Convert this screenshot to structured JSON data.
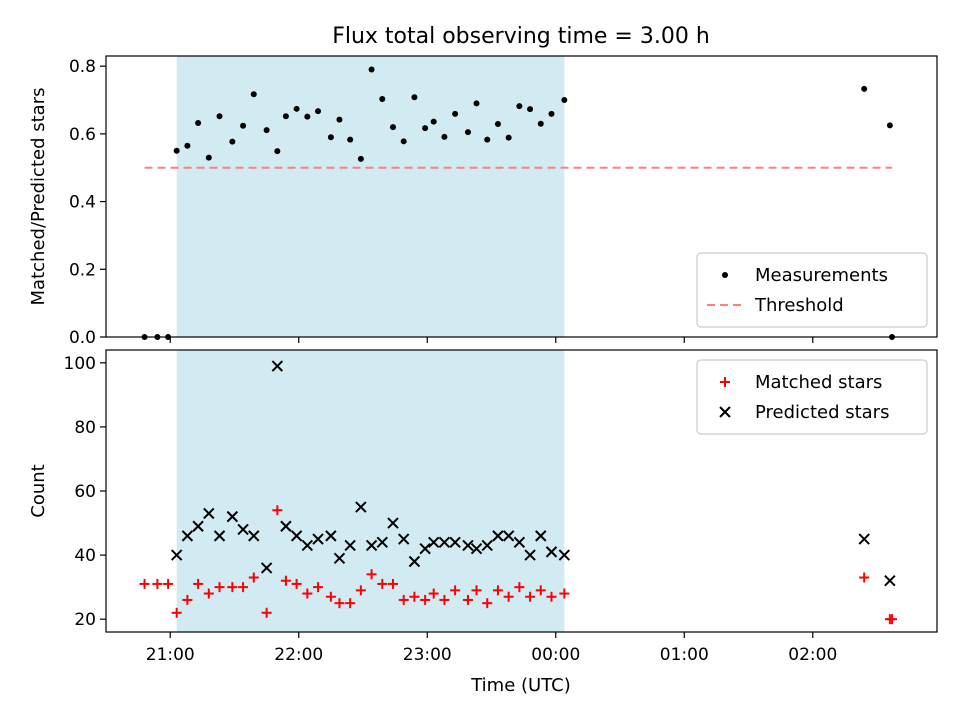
{
  "chart_data": {
    "title": "Flux total observing time = 3.00 h",
    "xlabel": "Time (UTC)",
    "xlim": [
      "20:30",
      "02:58"
    ],
    "x_ticks": [
      "21:00",
      "22:00",
      "23:00",
      "00:00",
      "01:00",
      "02:00"
    ],
    "shaded_interval": {
      "start": "21:03",
      "end": "00:04",
      "color": "#add8e6"
    },
    "panels": [
      {
        "type": "scatter",
        "ylabel": "Matched/Predicted stars",
        "ylim": [
          0,
          0.83
        ],
        "y_ticks": [
          "0.0",
          "0.2",
          "0.4",
          "0.6",
          "0.8"
        ],
        "legend_position": "lower-right",
        "series": [
          {
            "name": "Measurements",
            "marker": "dot",
            "color": "#000000",
            "points": [
              [
                "20:48",
                0.0
              ],
              [
                "20:54",
                0.0
              ],
              [
                "20:59",
                0.0
              ],
              [
                "21:03",
                0.55
              ],
              [
                "21:08",
                0.565
              ],
              [
                "21:13",
                0.632
              ],
              [
                "21:18",
                0.53
              ],
              [
                "21:23",
                0.652
              ],
              [
                "21:29",
                0.577
              ],
              [
                "21:34",
                0.624
              ],
              [
                "21:39",
                0.717
              ],
              [
                "21:45",
                0.611
              ],
              [
                "21:50",
                0.549
              ],
              [
                "21:54",
                0.652
              ],
              [
                "21:59",
                0.674
              ],
              [
                "22:04",
                0.651
              ],
              [
                "22:09",
                0.667
              ],
              [
                "22:15",
                0.59
              ],
              [
                "22:19",
                0.642
              ],
              [
                "22:24",
                0.583
              ],
              [
                "22:29",
                0.526
              ],
              [
                "22:34",
                0.79
              ],
              [
                "22:39",
                0.703
              ],
              [
                "22:44",
                0.62
              ],
              [
                "22:49",
                0.578
              ],
              [
                "22:54",
                0.708
              ],
              [
                "22:59",
                0.617
              ],
              [
                "23:03",
                0.636
              ],
              [
                "23:08",
                0.591
              ],
              [
                "23:13",
                0.659
              ],
              [
                "23:19",
                0.605
              ],
              [
                "23:23",
                0.69
              ],
              [
                "23:28",
                0.583
              ],
              [
                "23:33",
                0.629
              ],
              [
                "23:38",
                0.589
              ],
              [
                "23:43",
                0.682
              ],
              [
                "23:48",
                0.673
              ],
              [
                "23:53",
                0.63
              ],
              [
                "23:58",
                0.659
              ],
              [
                "00:04",
                0.7
              ],
              [
                "02:24",
                0.733
              ],
              [
                "02:36",
                0.625
              ],
              [
                "02:37",
                0.0
              ]
            ]
          },
          {
            "name": "Threshold",
            "style": "dashed",
            "color": "#ff7f7f",
            "x": [
              "20:48",
              "02:37"
            ],
            "y": 0.5
          }
        ]
      },
      {
        "type": "scatter",
        "ylabel": "Count",
        "ylim": [
          16,
          104
        ],
        "y_ticks": [
          "20",
          "40",
          "60",
          "80",
          "100"
        ],
        "legend_position": "upper-right",
        "series": [
          {
            "name": "Matched stars",
            "marker": "plus",
            "color": "#ff0000",
            "points": [
              [
                "20:48",
                31
              ],
              [
                "20:54",
                31
              ],
              [
                "20:59",
                31
              ],
              [
                "21:03",
                22
              ],
              [
                "21:08",
                26
              ],
              [
                "21:13",
                31
              ],
              [
                "21:18",
                28
              ],
              [
                "21:23",
                30
              ],
              [
                "21:29",
                30
              ],
              [
                "21:34",
                30
              ],
              [
                "21:39",
                33
              ],
              [
                "21:45",
                22
              ],
              [
                "21:50",
                54
              ],
              [
                "21:54",
                32
              ],
              [
                "21:59",
                31
              ],
              [
                "22:04",
                28
              ],
              [
                "22:09",
                30
              ],
              [
                "22:15",
                27
              ],
              [
                "22:19",
                25
              ],
              [
                "22:24",
                25
              ],
              [
                "22:29",
                29
              ],
              [
                "22:34",
                34
              ],
              [
                "22:39",
                31
              ],
              [
                "22:44",
                31
              ],
              [
                "22:49",
                26
              ],
              [
                "22:54",
                27
              ],
              [
                "22:59",
                26
              ],
              [
                "23:03",
                28
              ],
              [
                "23:08",
                26
              ],
              [
                "23:13",
                29
              ],
              [
                "23:19",
                26
              ],
              [
                "23:23",
                29
              ],
              [
                "23:28",
                25
              ],
              [
                "23:33",
                29
              ],
              [
                "23:38",
                27
              ],
              [
                "23:43",
                30
              ],
              [
                "23:48",
                27
              ],
              [
                "23:53",
                29
              ],
              [
                "23:58",
                27
              ],
              [
                "00:04",
                28
              ],
              [
                "02:24",
                33
              ],
              [
                "02:36",
                20
              ],
              [
                "02:37",
                20
              ]
            ]
          },
          {
            "name": "Predicted stars",
            "marker": "x",
            "color": "#000000",
            "points": [
              [
                "21:03",
                40
              ],
              [
                "21:08",
                46
              ],
              [
                "21:13",
                49
              ],
              [
                "21:18",
                53
              ],
              [
                "21:23",
                46
              ],
              [
                "21:29",
                52
              ],
              [
                "21:34",
                48
              ],
              [
                "21:39",
                46
              ],
              [
                "21:45",
                36
              ],
              [
                "21:50",
                99
              ],
              [
                "21:54",
                49
              ],
              [
                "21:59",
                46
              ],
              [
                "22:04",
                43
              ],
              [
                "22:09",
                45
              ],
              [
                "22:15",
                46
              ],
              [
                "22:19",
                39
              ],
              [
                "22:24",
                43
              ],
              [
                "22:29",
                55
              ],
              [
                "22:34",
                43
              ],
              [
                "22:39",
                44
              ],
              [
                "22:44",
                50
              ],
              [
                "22:49",
                45
              ],
              [
                "22:54",
                38
              ],
              [
                "22:59",
                42
              ],
              [
                "23:03",
                44
              ],
              [
                "23:08",
                44
              ],
              [
                "23:13",
                44
              ],
              [
                "23:19",
                43
              ],
              [
                "23:23",
                42
              ],
              [
                "23:28",
                43
              ],
              [
                "23:33",
                46
              ],
              [
                "23:38",
                46
              ],
              [
                "23:43",
                44
              ],
              [
                "23:48",
                40
              ],
              [
                "23:53",
                46
              ],
              [
                "23:58",
                41
              ],
              [
                "00:04",
                40
              ],
              [
                "02:24",
                45
              ],
              [
                "02:36",
                32
              ]
            ]
          }
        ]
      }
    ]
  }
}
